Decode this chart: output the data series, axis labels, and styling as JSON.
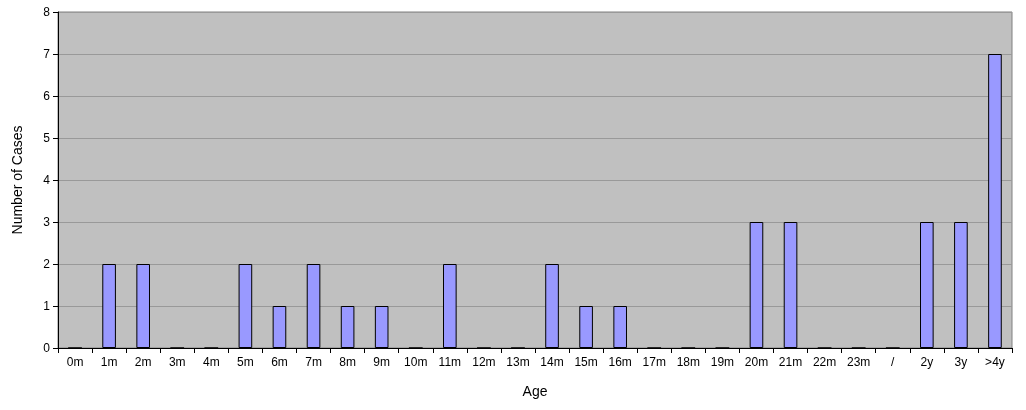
{
  "chart_data": {
    "type": "bar",
    "xlabel": "Age",
    "ylabel": "Number of Cases",
    "categories": [
      "0m",
      "1m",
      "2m",
      "3m",
      "4m",
      "5m",
      "6m",
      "7m",
      "8m",
      "9m",
      "10m",
      "11m",
      "12m",
      "13m",
      "14m",
      "15m",
      "16m",
      "17m",
      "18m",
      "19m",
      "20m",
      "21m",
      "22m",
      "23m",
      "/",
      "2y",
      "3y",
      ">4y"
    ],
    "values": [
      0,
      2,
      2,
      0,
      0,
      2,
      1,
      2,
      1,
      1,
      0,
      2,
      0,
      0,
      2,
      1,
      1,
      0,
      0,
      0,
      3,
      3,
      0,
      0,
      0,
      3,
      3,
      7
    ],
    "color": "#9999ff",
    "ylim": [
      0,
      8
    ],
    "yticks": [
      0,
      1,
      2,
      3,
      4,
      5,
      6,
      7,
      8
    ],
    "grid": "y"
  }
}
